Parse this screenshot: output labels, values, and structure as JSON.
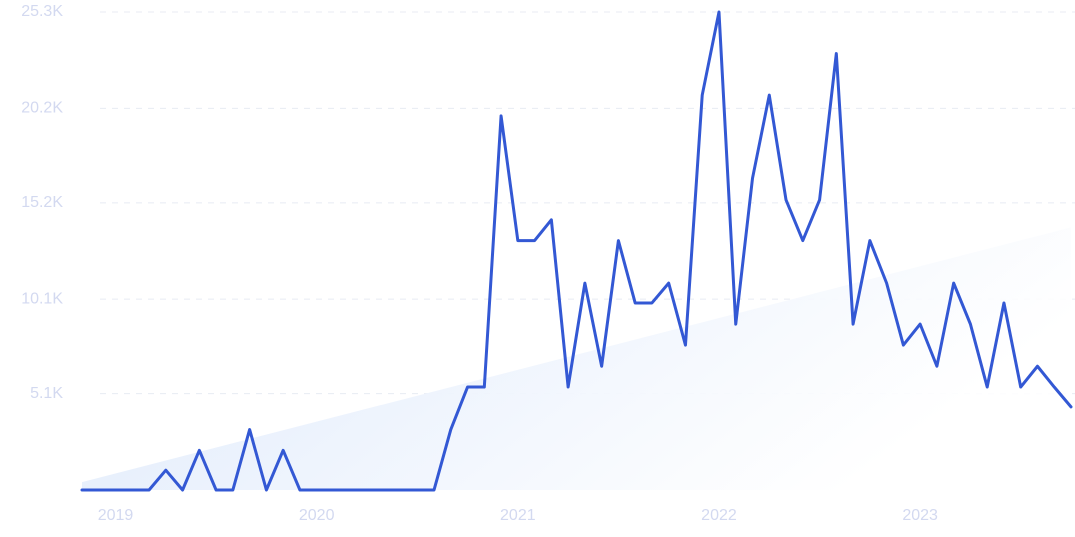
{
  "chart_data": {
    "type": "line",
    "categories": [
      null,
      null,
      "2019",
      null,
      null,
      null,
      null,
      null,
      null,
      null,
      null,
      null,
      null,
      null,
      "2020",
      null,
      null,
      null,
      null,
      null,
      null,
      null,
      null,
      null,
      null,
      null,
      "2021",
      null,
      null,
      null,
      null,
      null,
      null,
      null,
      null,
      null,
      null,
      null,
      "2022",
      null,
      null,
      null,
      null,
      null,
      null,
      null,
      null,
      null,
      null,
      null,
      "2023",
      null,
      null,
      null,
      null,
      null,
      null,
      null,
      null,
      null
    ],
    "values": [
      0,
      0,
      0,
      0,
      0,
      1050,
      0,
      2100,
      0,
      0,
      3200,
      0,
      2100,
      0,
      0,
      0,
      0,
      0,
      0,
      0,
      0,
      0,
      3200,
      5450,
      5450,
      19800,
      13200,
      13200,
      14300,
      5450,
      10950,
      6550,
      13200,
      9900,
      9900,
      10950,
      7670,
      20900,
      25300,
      8780,
      16500,
      20900,
      15350,
      13200,
      15350,
      23100,
      8780,
      13200,
      10950,
      7670,
      8780,
      6550,
      10950,
      8780,
      5450,
      9900,
      5450,
      6550,
      5450,
      4400
    ],
    "color": "#3358d4",
    "trend": [
      420,
      13900
    ],
    "trend_color": "#dce8fb",
    "ylim": [
      0,
      25300
    ],
    "yticks": [
      {
        "value": 5100,
        "label": "5.1K"
      },
      {
        "value": 10100,
        "label": "10.1K"
      },
      {
        "value": 15200,
        "label": "15.2K"
      },
      {
        "value": 20200,
        "label": "20.2K"
      },
      {
        "value": 25300,
        "label": "25.3K"
      }
    ],
    "grid": true
  }
}
